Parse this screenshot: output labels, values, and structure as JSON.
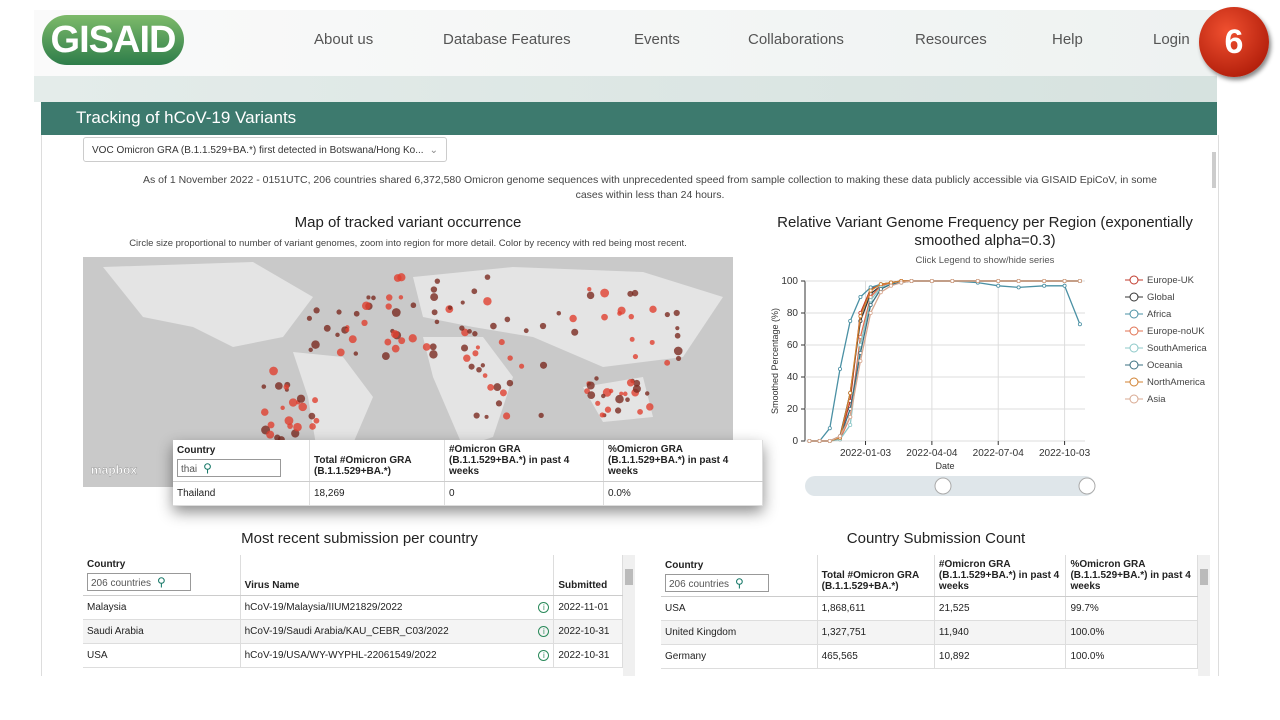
{
  "nav": {
    "logo": "GISAID",
    "items": [
      "About us",
      "Database Features",
      "Events",
      "Collaborations",
      "Resources",
      "Help",
      "Login"
    ],
    "badge": "6"
  },
  "section_title": "Tracking of hCoV-19 Variants",
  "variant_select": "VOC Omicron GRA (B.1.1.529+BA.*) first detected in Botswana/Hong Ko...",
  "notice": "As of 1 November 2022 - 0151UTC, 206 countries shared 6,372,580 Omicron genome sequences with unprecedented speed from sample collection to making these data publicly accessible via GISAID EpiCoV, in some cases within less than 24 hours.",
  "map": {
    "title": "Map of tracked variant occurrence",
    "subtitle": "Circle size proportional to number of variant genomes, zoom into region for more detail. Color by recency with red being most recent.",
    "attribution": "mapbox"
  },
  "popup_table": {
    "headers": [
      "Country",
      "Total #Omicron GRA (B.1.1.529+BA.*)",
      "#Omicron GRA (B.1.1.529+BA.*) in past 4 weeks",
      "%Omicron GRA (B.1.1.529+BA.*) in past 4 weeks"
    ],
    "search": "thai",
    "rows": [
      [
        "Thailand",
        "18,269",
        "0",
        "0.0%"
      ]
    ]
  },
  "chart_data": {
    "type": "line",
    "title": "Relative Variant Genome Frequency per Region (exponentially smoothed alpha=0.3)",
    "subtitle": "Click Legend to show/hide series",
    "y_label": "Smoothed Percentage (%)",
    "x_label": "Date",
    "x": [
      "2021-10-18",
      "2021-11-01",
      "2021-11-15",
      "2021-11-29",
      "2021-12-13",
      "2021-12-27",
      "2022-01-10",
      "2022-01-24",
      "2022-02-07",
      "2022-02-21",
      "2022-03-07",
      "2022-04-04",
      "2022-05-02",
      "2022-06-06",
      "2022-07-04",
      "2022-08-01",
      "2022-09-05",
      "2022-10-03",
      "2022-10-24"
    ],
    "xlim": [
      "2021-10-12",
      "2022-10-31"
    ],
    "xticks": [
      "2022-01-03",
      "2022-04-04",
      "2022-07-04",
      "2022-10-03"
    ],
    "ylim": [
      0,
      100
    ],
    "yticks": [
      0,
      20,
      40,
      60,
      80,
      100
    ],
    "grid": true,
    "series": [
      {
        "name": "Europe-UK",
        "color": "#c0392b",
        "values": [
          0,
          0,
          0,
          2,
          25,
          80,
          95,
          98,
          99,
          100,
          100,
          100,
          100,
          100,
          100,
          100,
          100,
          100,
          100
        ]
      },
      {
        "name": "Global",
        "color": "#333333",
        "values": [
          0,
          0,
          0,
          3,
          30,
          75,
          92,
          97,
          99,
          100,
          100,
          100,
          100,
          100,
          100,
          100,
          100,
          100,
          100
        ]
      },
      {
        "name": "Africa",
        "color": "#4a90a4",
        "values": [
          0,
          0,
          8,
          45,
          75,
          90,
          96,
          98,
          99,
          100,
          100,
          100,
          100,
          99,
          97,
          96,
          97,
          97,
          73
        ]
      },
      {
        "name": "Europe-noUK",
        "color": "#e07050",
        "values": [
          0,
          0,
          0,
          1,
          15,
          65,
          90,
          97,
          99,
          100,
          100,
          100,
          100,
          100,
          100,
          100,
          100,
          100,
          100
        ]
      },
      {
        "name": "SouthAmerica",
        "color": "#8cc8c8",
        "values": [
          0,
          0,
          0,
          1,
          10,
          60,
          88,
          96,
          98,
          99,
          100,
          100,
          100,
          100,
          100,
          100,
          100,
          100,
          100
        ]
      },
      {
        "name": "Oceania",
        "color": "#3a6f80",
        "values": [
          0,
          0,
          0,
          2,
          20,
          55,
          85,
          95,
          98,
          99,
          100,
          100,
          100,
          100,
          100,
          100,
          100,
          100,
          100
        ]
      },
      {
        "name": "NorthAmerica",
        "color": "#d08030",
        "values": [
          0,
          0,
          0,
          2,
          30,
          78,
          94,
          98,
          99,
          100,
          100,
          100,
          100,
          100,
          100,
          100,
          100,
          100,
          100
        ]
      },
      {
        "name": "Asia",
        "color": "#d8a890",
        "values": [
          0,
          0,
          0,
          3,
          15,
          50,
          80,
          93,
          97,
          99,
          100,
          100,
          100,
          100,
          100,
          100,
          100,
          100,
          100
        ]
      }
    ]
  },
  "recent_table": {
    "title": "Most recent submission per country",
    "headers": [
      "Country",
      "Virus Name",
      "Submitted"
    ],
    "search": "206 countries",
    "rows": [
      [
        "Malaysia",
        "hCoV-19/Malaysia/IIUM21829/2022",
        "2022-11-01"
      ],
      [
        "Saudi Arabia",
        "hCoV-19/Saudi Arabia/KAU_CEBR_C03/2022",
        "2022-10-31"
      ],
      [
        "USA",
        "hCoV-19/USA/WY-WYPHL-22061549/2022",
        "2022-10-31"
      ]
    ]
  },
  "count_table": {
    "title": "Country Submission Count",
    "headers": [
      "Country",
      "Total #Omicron GRA (B.1.1.529+BA.*)",
      "#Omicron GRA (B.1.1.529+BA.*) in past 4 weeks",
      "%Omicron GRA (B.1.1.529+BA.*) in past 4 weeks"
    ],
    "search": "206 countries",
    "rows": [
      [
        "USA",
        "1,868,611",
        "21,525",
        "99.7%"
      ],
      [
        "United Kingdom",
        "1,327,751",
        "11,940",
        "100.0%"
      ],
      [
        "Germany",
        "465,565",
        "10,892",
        "100.0%"
      ]
    ]
  }
}
